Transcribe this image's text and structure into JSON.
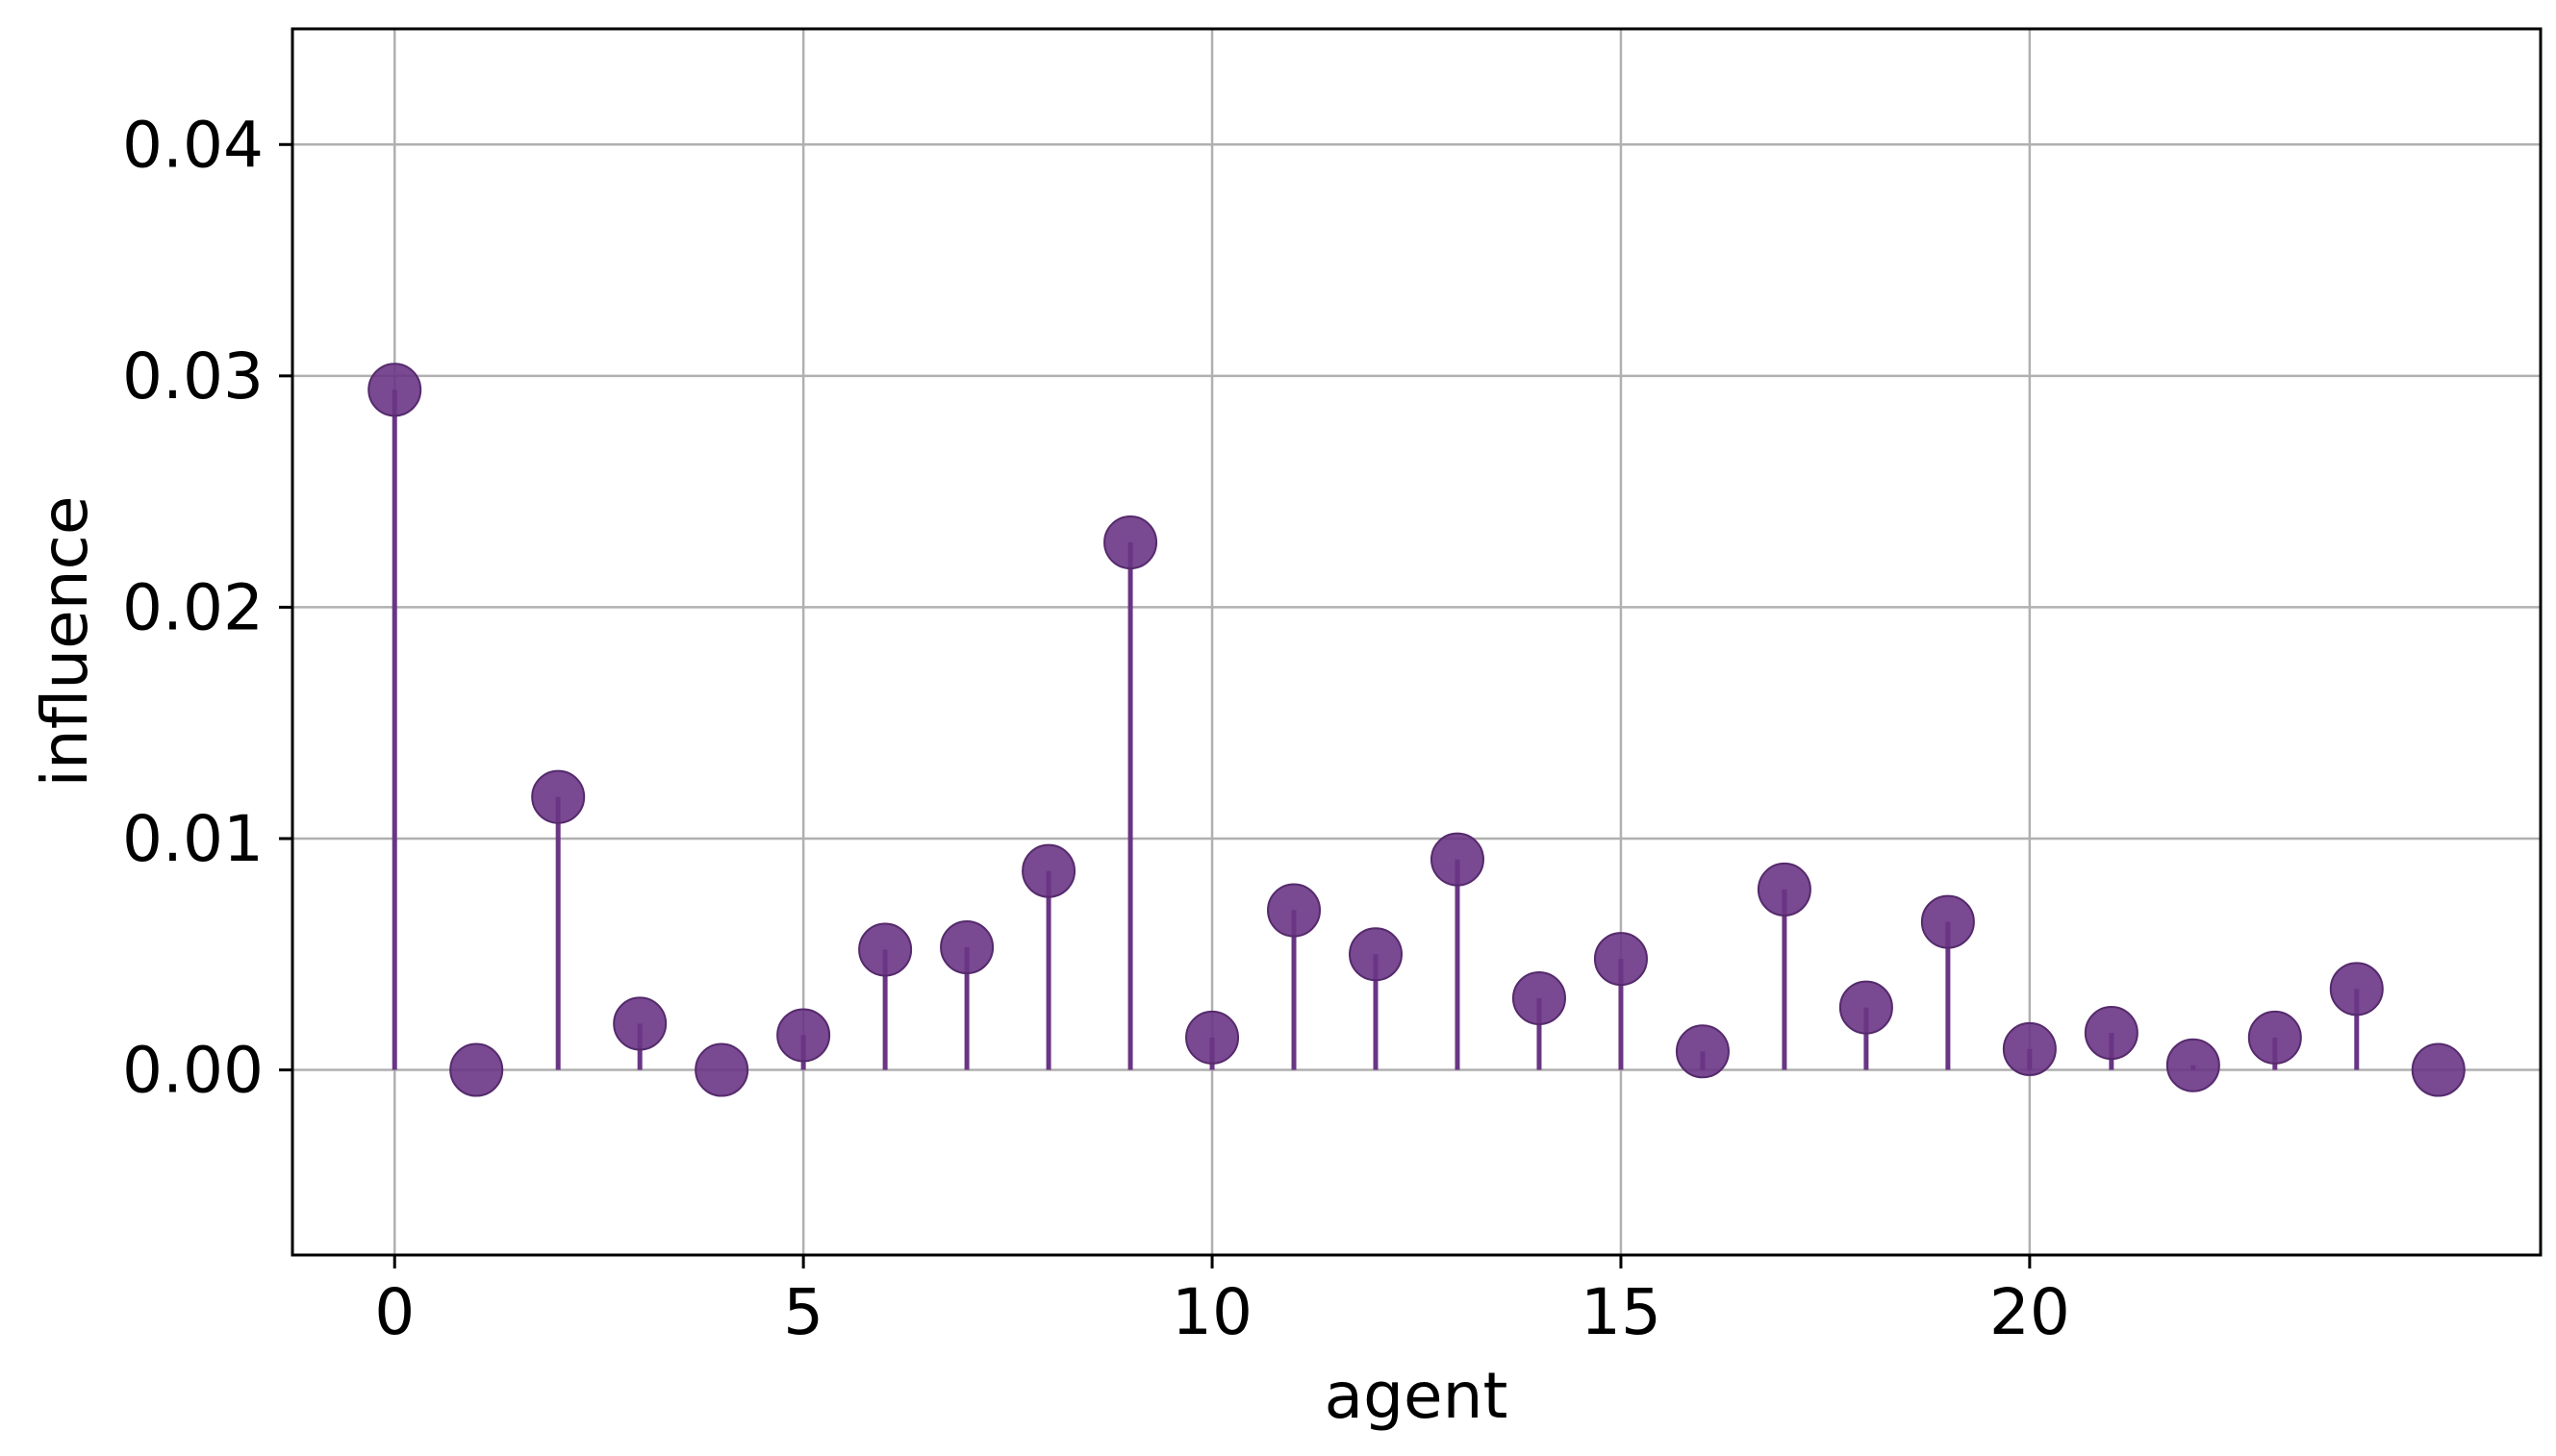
{
  "chart_data": {
    "type": "stem",
    "xlabel": "agent",
    "ylabel": "influence",
    "xlim": [
      -1.25,
      26.25
    ],
    "ylim": [
      -0.008,
      0.045
    ],
    "x_ticks": [
      {
        "value": 0,
        "label": "0"
      },
      {
        "value": 5,
        "label": "5"
      },
      {
        "value": 10,
        "label": "10"
      },
      {
        "value": 15,
        "label": "15"
      },
      {
        "value": 20,
        "label": "20"
      }
    ],
    "y_ticks": [
      {
        "value": 0.0,
        "label": "0.00"
      },
      {
        "value": 0.01,
        "label": "0.01"
      },
      {
        "value": 0.02,
        "label": "0.02"
      },
      {
        "value": 0.03,
        "label": "0.03"
      },
      {
        "value": 0.04,
        "label": "0.04"
      }
    ],
    "grid": true,
    "color": "#6a3585",
    "x": [
      0,
      1,
      2,
      3,
      4,
      5,
      6,
      7,
      8,
      9,
      10,
      11,
      12,
      13,
      14,
      15,
      16,
      17,
      18,
      19,
      20,
      21,
      22,
      23,
      24,
      25
    ],
    "values": [
      0.0294,
      0.0,
      0.0118,
      0.002,
      0.0,
      0.0015,
      0.0052,
      0.0053,
      0.0086,
      0.0228,
      0.0014,
      0.0069,
      0.005,
      0.0091,
      0.0031,
      0.0048,
      0.0008,
      0.0078,
      0.0027,
      0.0064,
      0.0009,
      0.0016,
      0.0002,
      0.0014,
      0.0035,
      0.0
    ]
  }
}
